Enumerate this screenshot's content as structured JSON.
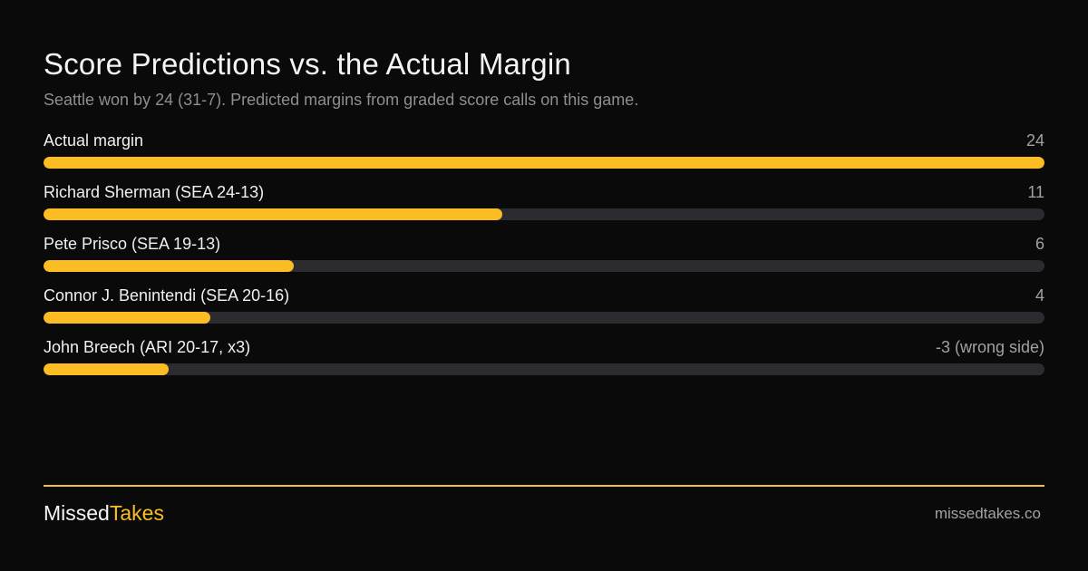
{
  "header": {
    "title": "Score Predictions  vs. the Actual Margin",
    "subtitle": "Seattle won by 24 (31-7). Predicted margins from graded score calls on this game."
  },
  "footer": {
    "brand_part1": "Missed",
    "brand_part2": "Takes",
    "site": "missedtakes.co"
  },
  "colors": {
    "background": "#0a0a0a",
    "accent": "#fbbd23",
    "track": "#2c2b30"
  },
  "chart_data": {
    "type": "bar",
    "orientation": "horizontal",
    "title": "Score Predictions  vs. the Actual Margin",
    "subtitle": "Seattle won by 24 (31-7). Predicted margins from graded score calls on this game.",
    "xlim": [
      0,
      24
    ],
    "grid": false,
    "rows": [
      {
        "label": "Actual margin",
        "value": 24,
        "value_label": "24",
        "bar_value": 24
      },
      {
        "label": "Richard Sherman (SEA 24-13)",
        "value": 11,
        "value_label": "11",
        "bar_value": 11
      },
      {
        "label": "Pete Prisco (SEA 19-13)",
        "value": 6,
        "value_label": "6",
        "bar_value": 6
      },
      {
        "label": "Connor J. Benintendi (SEA 20-16)",
        "value": 4,
        "value_label": "4",
        "bar_value": 4
      },
      {
        "label": "John Breech (ARI 20-17, x3)",
        "value": -3,
        "value_label": "-3 (wrong side)",
        "bar_value": 3
      }
    ]
  }
}
